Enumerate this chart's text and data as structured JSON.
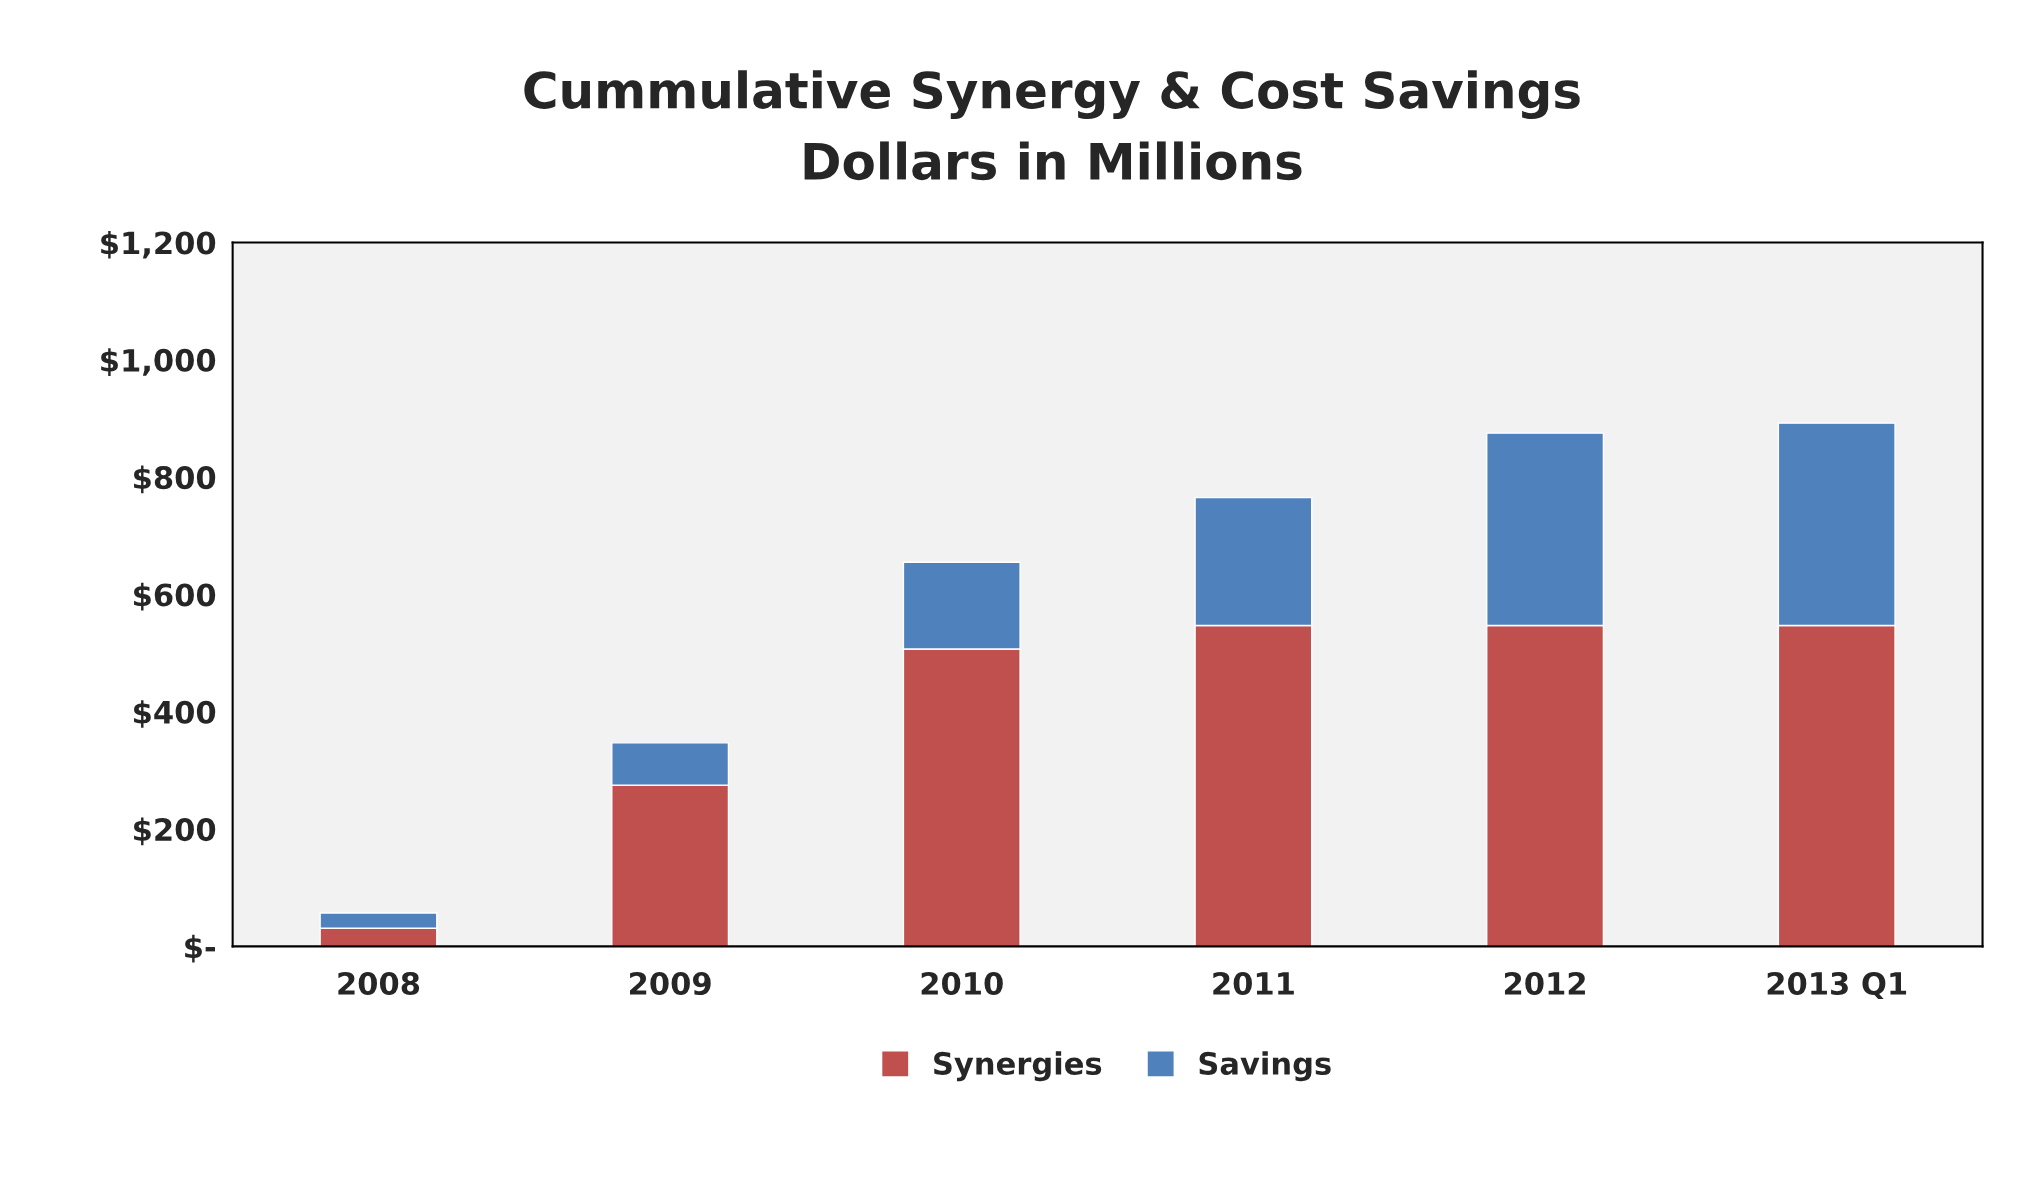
{
  "chart_data": {
    "type": "bar",
    "title": "Cummulative Synergy & Cost Savings",
    "subtitle": "Dollars in Millions",
    "categories": [
      "2008",
      "2009",
      "2010",
      "2011",
      "2012",
      "2013 Q1"
    ],
    "stacked": true,
    "series": [
      {
        "name": "Synergies",
        "color": "#c0504d",
        "values": [
          31,
          275,
          507,
          547,
          547,
          547
        ]
      },
      {
        "name": "Savings",
        "color": "#4f81bd",
        "values": [
          26,
          72,
          148,
          218,
          328,
          345
        ]
      }
    ],
    "ylim": [
      0,
      1200
    ],
    "yticks": [
      {
        "value": 0,
        "label": "$-"
      },
      {
        "value": 200,
        "label": "$200"
      },
      {
        "value": 400,
        "label": "$400"
      },
      {
        "value": 600,
        "label": "$600"
      },
      {
        "value": 800,
        "label": "$800"
      },
      {
        "value": 1000,
        "label": "$1,000"
      },
      {
        "value": 1200,
        "label": "$1,200"
      }
    ],
    "grid": false,
    "legend": "bottom"
  }
}
